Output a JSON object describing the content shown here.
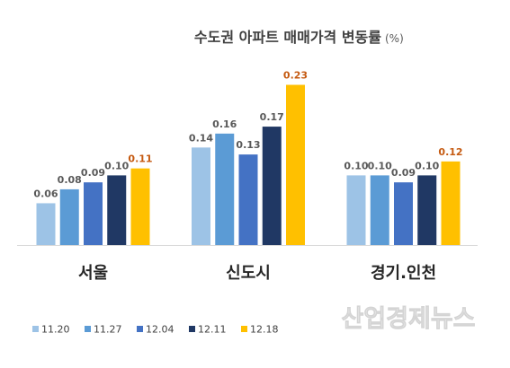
{
  "chart_data": {
    "type": "bar",
    "title": "수도권 아파트 매매가격 변동률",
    "title_unit": "(%)",
    "xlabel": "",
    "ylabel": "",
    "categories": [
      "서울",
      "신도시",
      "경기.인천"
    ],
    "ylim": [
      0,
      0.25
    ],
    "grid": false,
    "legend": "bottom-left",
    "series": [
      {
        "name": "11.20",
        "color": "#9DC3E6",
        "label_color": "#595959",
        "values": [
          0.06,
          0.14,
          0.1
        ],
        "labels": [
          "0.06",
          "0.14",
          "0.10"
        ]
      },
      {
        "name": "11.27",
        "color": "#5B9BD5",
        "label_color": "#595959",
        "values": [
          0.08,
          0.16,
          0.1
        ],
        "labels": [
          "0.08",
          "0.16",
          "0.10"
        ]
      },
      {
        "name": "12.04",
        "color": "#4472C4",
        "label_color": "#595959",
        "values": [
          0.09,
          0.13,
          0.09
        ],
        "labels": [
          "0.09",
          "0.13",
          "0.09"
        ]
      },
      {
        "name": "12.11",
        "color": "#203864",
        "label_color": "#595959",
        "values": [
          0.1,
          0.17,
          0.1
        ],
        "labels": [
          "0.10",
          "0.17",
          "0.10"
        ]
      },
      {
        "name": "12.18",
        "color": "#FFC000",
        "label_color": "#C55A11",
        "values": [
          0.11,
          0.23,
          0.12
        ],
        "labels": [
          "0.11",
          "0.23",
          "0.12"
        ]
      }
    ]
  },
  "watermark": "산업경제뉴스"
}
